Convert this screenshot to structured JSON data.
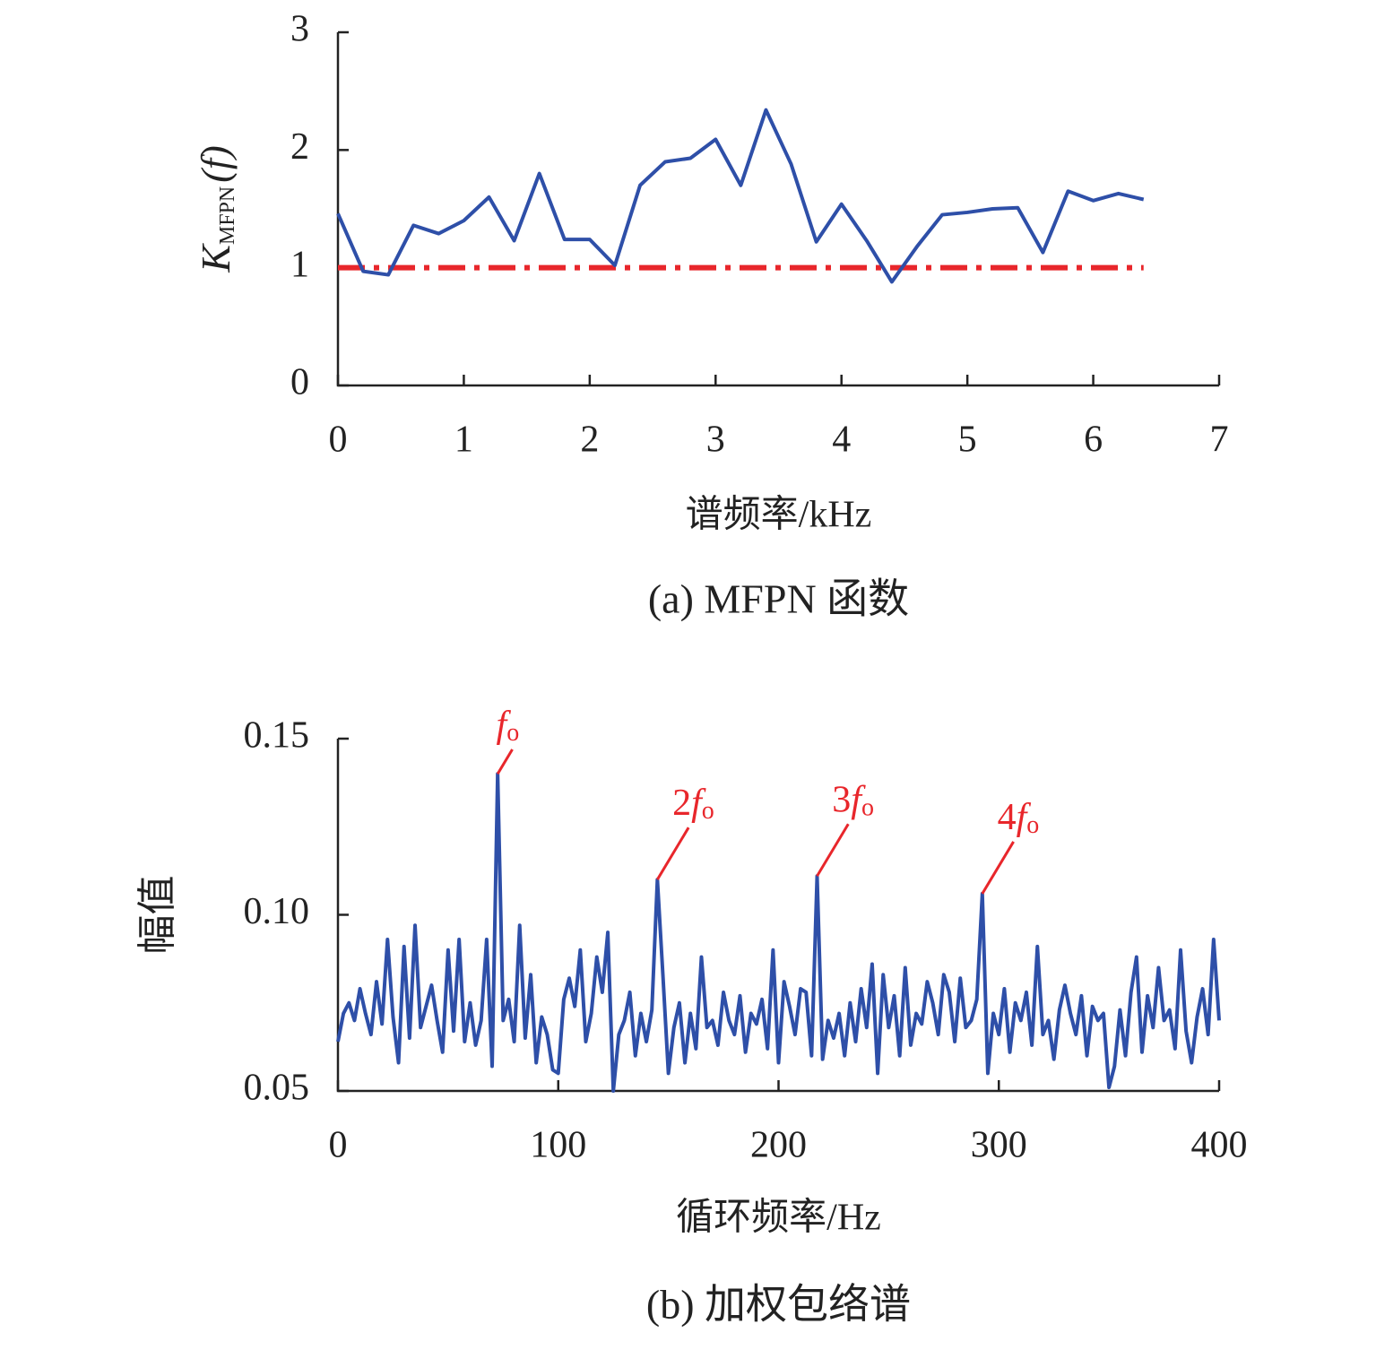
{
  "chart_data": [
    {
      "type": "line",
      "xlabel": "谱频率/kHz",
      "ylabel": "K",
      "ylabel_sub": "MFPN",
      "ylabel_suffix": "(f)",
      "caption": "(a) MFPN 函数",
      "x": [
        0,
        0.2,
        0.4,
        0.6,
        0.8,
        1.0,
        1.2,
        1.4,
        1.6,
        1.8,
        2.0,
        2.2,
        2.4,
        2.6,
        2.8,
        3.0,
        3.2,
        3.4,
        3.6,
        3.8,
        4.0,
        4.2,
        4.4,
        4.6,
        4.8,
        5.0,
        5.2,
        5.4,
        5.6,
        5.8,
        6.0,
        6.2,
        6.4
      ],
      "values": [
        1.46,
        0.97,
        0.94,
        1.36,
        1.29,
        1.4,
        1.6,
        1.23,
        1.8,
        1.24,
        1.24,
        1.02,
        1.7,
        1.9,
        1.93,
        2.09,
        1.7,
        2.34,
        1.88,
        1.22,
        1.54,
        1.23,
        0.88,
        1.18,
        1.45,
        1.47,
        1.5,
        1.51,
        1.13,
        1.65,
        1.57,
        1.63,
        1.58
      ],
      "color": "#2e4fa8",
      "hline": {
        "y": 1,
        "color": "#e8262b",
        "dash": "dashdot"
      },
      "xlim": [
        0,
        7
      ],
      "xticks": [
        0,
        1,
        2,
        3,
        4,
        5,
        6,
        7
      ],
      "ylim": [
        0,
        3
      ],
      "yticks": [
        0,
        1,
        2,
        3
      ]
    },
    {
      "type": "line",
      "xlabel": "循环频率/Hz",
      "ylabel": "幅值",
      "caption": "(b) 加权包络谱",
      "x": [
        0,
        2.5,
        5,
        7.5,
        10,
        12.5,
        15,
        17.5,
        20,
        22.5,
        25,
        27.5,
        30,
        32.5,
        35,
        37.5,
        40,
        42.5,
        45,
        47.5,
        50,
        52.5,
        55,
        57.5,
        60,
        62.5,
        65,
        67.5,
        70,
        72.5,
        75,
        77.5,
        80,
        82.5,
        85,
        87.5,
        90,
        92.5,
        95,
        97.5,
        100,
        102.5,
        105,
        107.5,
        110,
        112.5,
        115,
        117.5,
        120,
        122.5,
        125,
        127.5,
        130,
        132.5,
        135,
        137.5,
        140,
        142.5,
        145,
        147.5,
        150,
        152.5,
        155,
        157.5,
        160,
        162.5,
        165,
        167.5,
        170,
        172.5,
        175,
        177.5,
        180,
        182.5,
        185,
        187.5,
        190,
        192.5,
        195,
        197.5,
        200,
        202.5,
        205,
        207.5,
        210,
        212.5,
        215,
        217.5,
        220,
        222.5,
        225,
        227.5,
        230,
        232.5,
        235,
        237.5,
        240,
        242.5,
        245,
        247.5,
        250,
        252.5,
        255,
        257.5,
        260,
        262.5,
        265,
        267.5,
        270,
        272.5,
        275,
        277.5,
        280,
        282.5,
        285,
        287.5,
        290,
        292.5,
        295,
        297.5,
        300,
        302.5,
        305,
        307.5,
        310,
        312.5,
        315,
        317.5,
        320,
        322.5,
        325,
        327.5,
        330,
        332.5,
        335,
        337.5,
        340,
        342.5,
        345,
        347.5,
        350,
        352.5,
        355,
        357.5,
        360,
        362.5,
        365,
        367.5,
        370,
        372.5,
        375,
        377.5,
        380,
        382.5,
        385,
        387.5,
        390,
        392.5,
        395,
        397.5,
        400
      ],
      "values": [
        0.064,
        0.072,
        0.075,
        0.07,
        0.079,
        0.072,
        0.066,
        0.081,
        0.069,
        0.093,
        0.071,
        0.058,
        0.091,
        0.065,
        0.097,
        0.068,
        0.074,
        0.08,
        0.07,
        0.061,
        0.09,
        0.067,
        0.093,
        0.064,
        0.075,
        0.063,
        0.07,
        0.093,
        0.057,
        0.14,
        0.07,
        0.076,
        0.064,
        0.097,
        0.065,
        0.083,
        0.058,
        0.071,
        0.066,
        0.056,
        0.055,
        0.076,
        0.082,
        0.074,
        0.09,
        0.064,
        0.072,
        0.088,
        0.078,
        0.095,
        0.05,
        0.066,
        0.07,
        0.078,
        0.06,
        0.072,
        0.064,
        0.073,
        0.11,
        0.083,
        0.055,
        0.068,
        0.075,
        0.058,
        0.072,
        0.062,
        0.088,
        0.068,
        0.07,
        0.063,
        0.078,
        0.07,
        0.066,
        0.077,
        0.061,
        0.072,
        0.069,
        0.076,
        0.062,
        0.09,
        0.058,
        0.081,
        0.074,
        0.066,
        0.079,
        0.078,
        0.06,
        0.111,
        0.059,
        0.07,
        0.065,
        0.072,
        0.06,
        0.075,
        0.064,
        0.079,
        0.068,
        0.086,
        0.055,
        0.083,
        0.068,
        0.077,
        0.06,
        0.085,
        0.063,
        0.072,
        0.069,
        0.081,
        0.075,
        0.066,
        0.083,
        0.078,
        0.064,
        0.082,
        0.068,
        0.07,
        0.076,
        0.106,
        0.055,
        0.072,
        0.066,
        0.079,
        0.061,
        0.075,
        0.07,
        0.078,
        0.063,
        0.091,
        0.066,
        0.07,
        0.059,
        0.073,
        0.08,
        0.072,
        0.066,
        0.077,
        0.06,
        0.074,
        0.07,
        0.072,
        0.051,
        0.057,
        0.073,
        0.06,
        0.078,
        0.088,
        0.061,
        0.077,
        0.068,
        0.085,
        0.07,
        0.073,
        0.062,
        0.09,
        0.067,
        0.058,
        0.071,
        0.079,
        0.066,
        0.093,
        0.07
      ],
      "color": "#2e4fa8",
      "annotations": [
        {
          "var": "f",
          "sub": "o",
          "x": 72.5,
          "color": "#e8262b"
        },
        {
          "label": "2",
          "var": "f",
          "sub": "o",
          "x": 145,
          "color": "#e8262b"
        },
        {
          "label": "3",
          "var": "f",
          "sub": "o",
          "x": 217.5,
          "color": "#e8262b"
        },
        {
          "label": "4",
          "var": "f",
          "sub": "o",
          "x": 292.5,
          "color": "#e8262b"
        }
      ],
      "xlim": [
        0,
        400
      ],
      "xticks": [
        0,
        100,
        200,
        300,
        400
      ],
      "ylim": [
        0.05,
        0.15
      ],
      "yticks": [
        0.05,
        {
          "value": 0.1,
          "label": "0.10"
        },
        0.15
      ]
    }
  ]
}
